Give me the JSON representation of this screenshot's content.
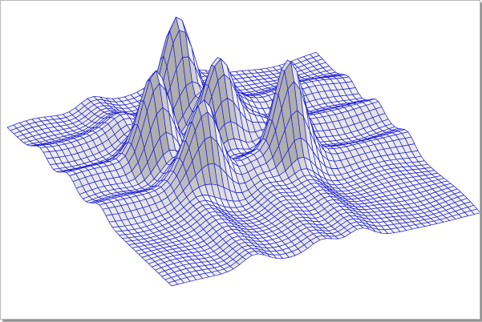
{
  "chart_data": {
    "type": "surface",
    "title": "",
    "xlabel": "",
    "ylabel": "",
    "zlabel": "",
    "grid_lines": 50,
    "x_range": [
      0,
      1
    ],
    "y_range": [
      0,
      1
    ],
    "z_range": [
      0,
      1
    ],
    "mesh_color": "#1a1ad6",
    "face_colors": {
      "light": "#f4f4f4",
      "dark": "#9c9c9c"
    },
    "surface": {
      "description_free": true,
      "peaks": [
        {
          "x": 0.28,
          "y": 0.38,
          "height": 0.78,
          "width": 0.045
        },
        {
          "x": 0.44,
          "y": 0.2,
          "height": 1.0,
          "width": 0.045
        },
        {
          "x": 0.5,
          "y": 0.35,
          "height": 0.72,
          "width": 0.045
        },
        {
          "x": 0.34,
          "y": 0.56,
          "height": 0.82,
          "width": 0.045
        },
        {
          "x": 0.62,
          "y": 0.55,
          "height": 0.92,
          "width": 0.045
        }
      ],
      "ridges_x": [
        {
          "x": 0.27,
          "height": 0.13,
          "width": 0.04
        },
        {
          "x": 0.49,
          "height": 0.12,
          "width": 0.04
        },
        {
          "x": 0.61,
          "height": 0.14,
          "width": 0.04
        }
      ],
      "ridges_y": [
        {
          "y": 0.2,
          "height": 0.12,
          "width": 0.04
        },
        {
          "y": 0.37,
          "height": 0.13,
          "width": 0.04
        },
        {
          "y": 0.56,
          "height": 0.12,
          "width": 0.04
        }
      ]
    }
  }
}
